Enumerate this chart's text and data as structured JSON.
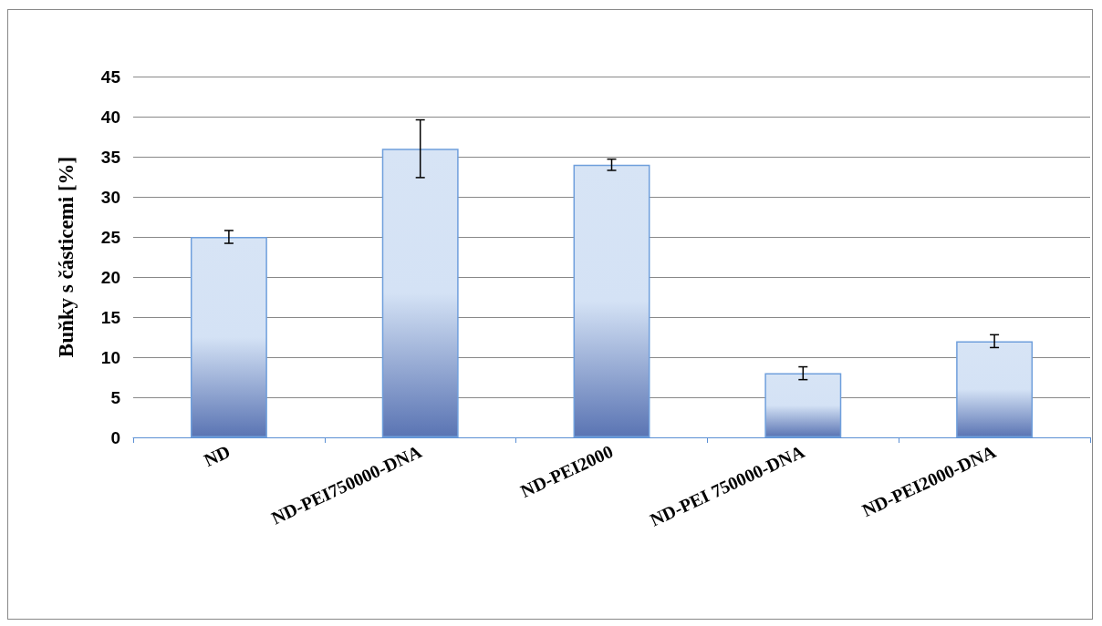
{
  "chart_data": {
    "type": "bar",
    "ylabel": "Buňky s částicemi [%]",
    "categories": [
      "ND",
      "ND-PEI750000-DNA",
      "ND-PEI2000",
      "ND-PEI 750000-DNA",
      "ND-PEI2000-DNA"
    ],
    "values": [
      25,
      36,
      34,
      8,
      12
    ],
    "errors": [
      0.8,
      3.6,
      0.7,
      0.8,
      0.8
    ],
    "color": "#6f9fdc",
    "ylim": [
      0,
      45
    ],
    "yticks": [
      0,
      5,
      10,
      15,
      20,
      25,
      30,
      35,
      40,
      45
    ],
    "grid": "y"
  }
}
